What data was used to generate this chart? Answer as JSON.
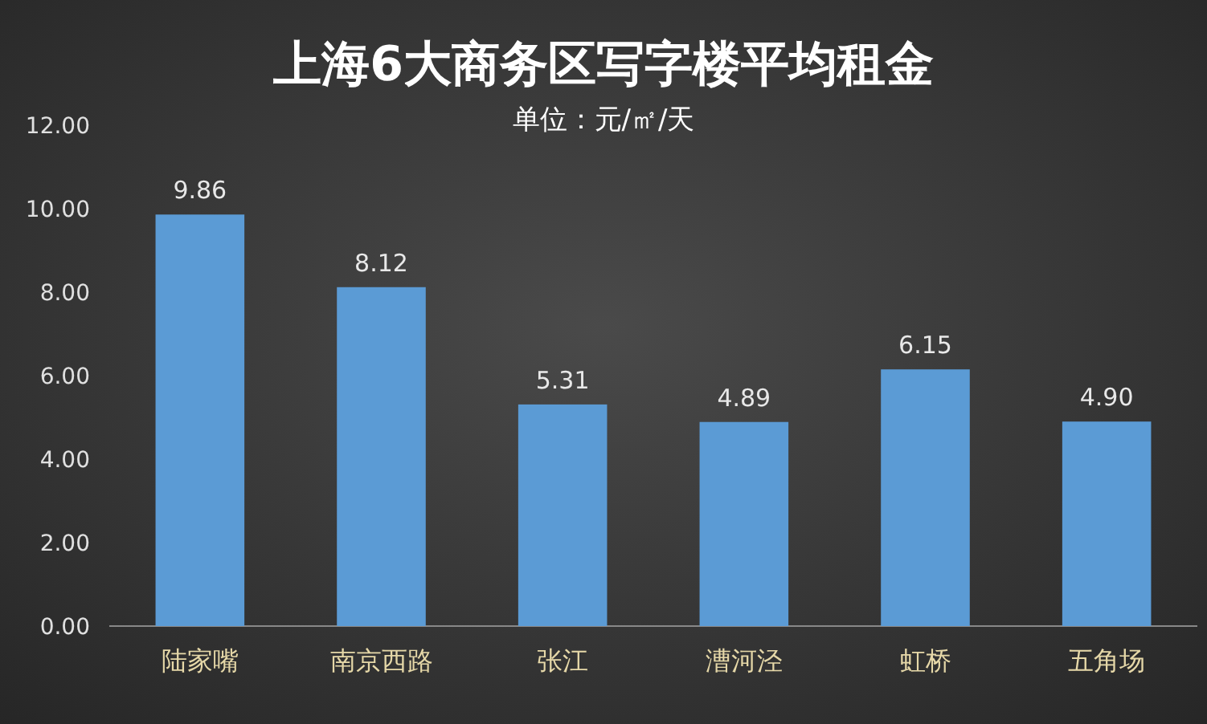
{
  "chart_data": {
    "type": "bar",
    "title": "上海6大商务区写字楼平均租金",
    "subtitle": "单位：元/㎡/天",
    "categories": [
      "陆家嘴",
      "南京西路",
      "张江",
      "漕河泾",
      "虹桥",
      "五角场"
    ],
    "values": [
      9.86,
      8.12,
      5.31,
      4.89,
      6.15,
      4.9
    ],
    "value_labels": [
      "9.86",
      "8.12",
      "5.31",
      "4.89",
      "6.15",
      "4.90"
    ],
    "color": "#5b9bd5",
    "ylim": [
      0,
      12
    ],
    "yticks": [
      {
        "value": 0,
        "label": "0.00"
      },
      {
        "value": 2,
        "label": "2.00"
      },
      {
        "value": 4,
        "label": "4.00"
      },
      {
        "value": 6,
        "label": "6.00"
      },
      {
        "value": 8,
        "label": "8.00"
      },
      {
        "value": 10,
        "label": "10.00"
      },
      {
        "value": 12,
        "label": "12.00"
      }
    ]
  }
}
